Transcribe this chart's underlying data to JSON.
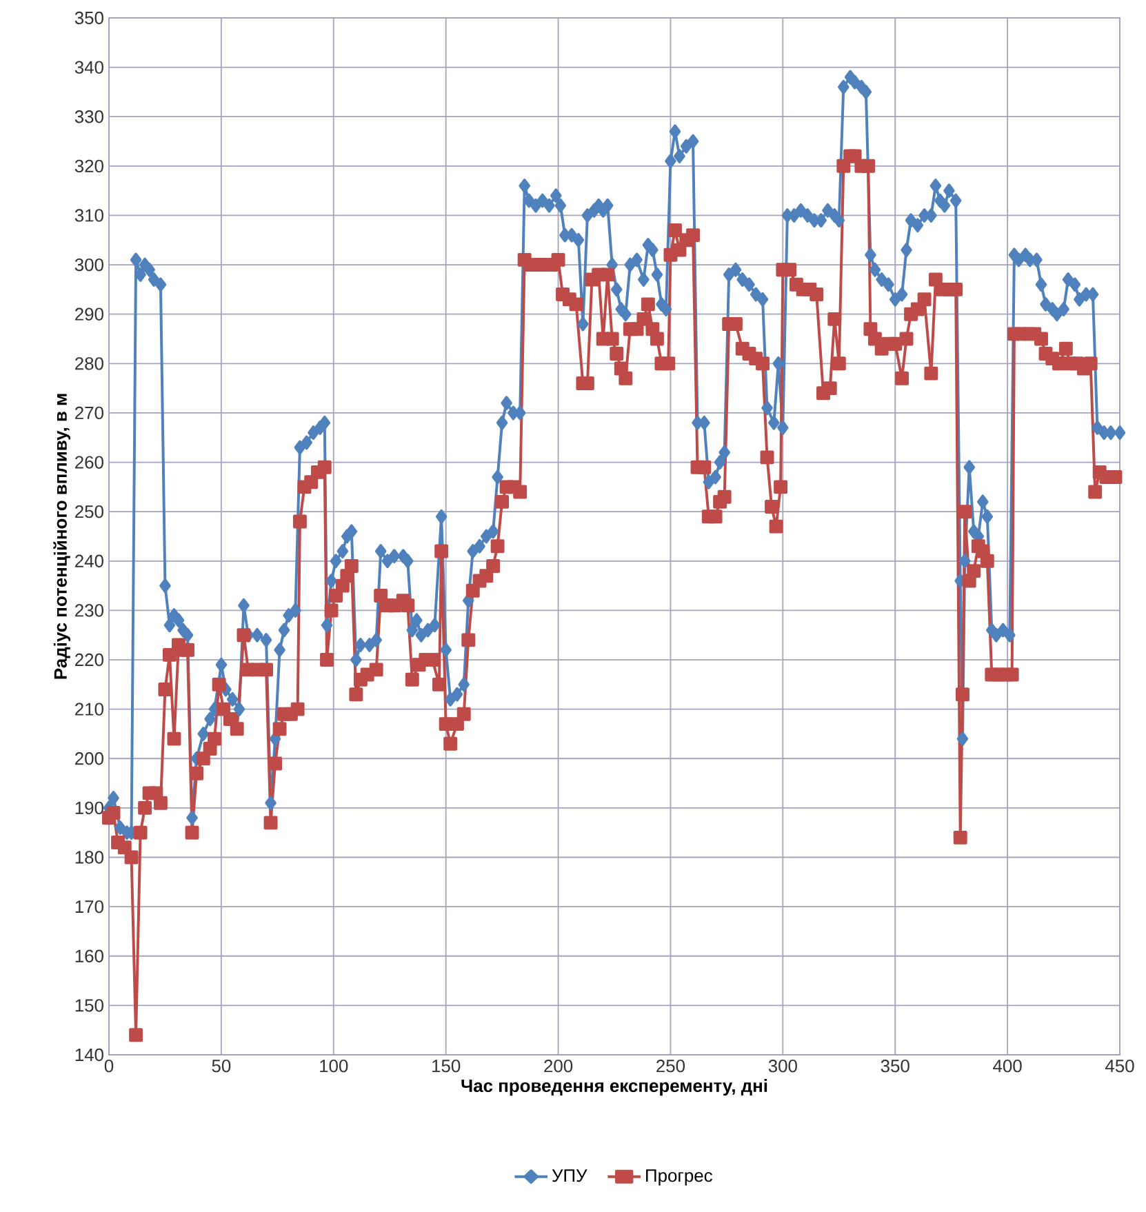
{
  "chart_data": {
    "type": "line",
    "xlabel": "Час проведення  експеременту, дні",
    "ylabel": "Радіус потенційного впливу, в м",
    "xlim": [
      0,
      450
    ],
    "xticks": [
      0,
      50,
      100,
      150,
      200,
      250,
      300,
      350,
      400,
      450
    ],
    "ylim": [
      140,
      350
    ],
    "yticks": [
      140,
      150,
      160,
      170,
      180,
      190,
      200,
      210,
      220,
      230,
      240,
      250,
      260,
      270,
      280,
      290,
      300,
      310,
      320,
      330,
      340,
      350
    ],
    "grid": true,
    "legend": "bottom",
    "line_style": "solid",
    "series": [
      {
        "name": "УПУ",
        "color": "#4f81bd",
        "marker": "diamond",
        "x": [
          0,
          2,
          5,
          8,
          10,
          12,
          14,
          16,
          18,
          20,
          23,
          25,
          27,
          29,
          31,
          33,
          35,
          37,
          39,
          42,
          45,
          47,
          50,
          52,
          55,
          58,
          60,
          62,
          66,
          70,
          72,
          74,
          76,
          78,
          80,
          83,
          85,
          88,
          91,
          94,
          96,
          97,
          99,
          101,
          104,
          106,
          108,
          110,
          112,
          116,
          119,
          121,
          124,
          127,
          131,
          133,
          135,
          137,
          139,
          142,
          145,
          148,
          150,
          152,
          155,
          158,
          160,
          162,
          165,
          168,
          171,
          173,
          175,
          177,
          180,
          183,
          185,
          187,
          190,
          193,
          196,
          199,
          201,
          203,
          206,
          209,
          211,
          213,
          216,
          218,
          220,
          222,
          224,
          226,
          228,
          230,
          232,
          235,
          238,
          240,
          242,
          244,
          246,
          248,
          250,
          252,
          254,
          257,
          260,
          262,
          265,
          267,
          270,
          272,
          274,
          276,
          279,
          282,
          285,
          288,
          291,
          293,
          296,
          298,
          300,
          302,
          305,
          308,
          311,
          314,
          317,
          320,
          323,
          325,
          327,
          330,
          332,
          335,
          337,
          339,
          341,
          344,
          347,
          350,
          353,
          355,
          357,
          360,
          363,
          366,
          368,
          370,
          372,
          374,
          377,
          379,
          380,
          381,
          383,
          385,
          387,
          389,
          391,
          393,
          395,
          398,
          401,
          403,
          405,
          408,
          410,
          413,
          415,
          417,
          420,
          422,
          425,
          427,
          430,
          432,
          435,
          438,
          440,
          443,
          446,
          450
        ],
        "values": [
          190,
          192,
          186,
          185,
          185,
          301,
          298,
          300,
          299,
          297,
          296,
          235,
          227,
          229,
          228,
          226,
          225,
          188,
          200,
          205,
          208,
          210,
          219,
          214,
          212,
          210,
          231,
          225,
          225,
          224,
          191,
          204,
          222,
          226,
          229,
          230,
          263,
          264,
          266,
          267,
          268,
          227,
          236,
          240,
          242,
          245,
          246,
          220,
          223,
          223,
          224,
          242,
          240,
          241,
          241,
          240,
          226,
          228,
          225,
          226,
          227,
          249,
          222,
          212,
          213,
          215,
          232,
          242,
          243,
          245,
          246,
          257,
          268,
          272,
          270,
          270,
          316,
          313,
          312,
          313,
          312,
          314,
          312,
          306,
          306,
          305,
          288,
          310,
          311,
          312,
          311,
          312,
          300,
          295,
          291,
          290,
          300,
          301,
          297,
          304,
          303,
          298,
          292,
          291,
          321,
          327,
          322,
          324,
          325,
          268,
          268,
          256,
          257,
          260,
          262,
          298,
          299,
          297,
          296,
          294,
          293,
          271,
          268,
          280,
          267,
          310,
          310,
          311,
          310,
          309,
          309,
          311,
          310,
          309,
          336,
          338,
          337,
          336,
          335,
          302,
          299,
          297,
          296,
          293,
          294,
          303,
          309,
          308,
          310,
          310,
          316,
          313,
          312,
          315,
          313,
          236,
          204,
          240,
          259,
          246,
          245,
          252,
          249,
          226,
          225,
          226,
          225,
          302,
          301,
          302,
          301,
          301,
          296,
          292,
          291,
          290,
          291,
          297,
          296,
          293,
          294,
          294,
          267,
          266,
          266,
          266
        ]
      },
      {
        "name": "Прогрес",
        "color": "#be4b48",
        "marker": "square",
        "x": [
          0,
          2,
          4,
          7,
          10,
          12,
          14,
          16,
          18,
          21,
          23,
          25,
          27,
          29,
          31,
          33,
          35,
          37,
          39,
          42,
          45,
          47,
          49,
          51,
          54,
          57,
          60,
          62,
          66,
          70,
          72,
          74,
          76,
          78,
          81,
          84,
          85,
          87,
          90,
          93,
          96,
          97,
          99,
          101,
          104,
          106,
          108,
          110,
          112,
          115,
          119,
          121,
          124,
          127,
          131,
          133,
          135,
          138,
          141,
          144,
          147,
          148,
          150,
          152,
          155,
          158,
          160,
          162,
          165,
          168,
          171,
          173,
          175,
          177,
          180,
          183,
          185,
          188,
          191,
          194,
          197,
          200,
          202,
          205,
          208,
          211,
          213,
          215,
          218,
          220,
          222,
          224,
          226,
          228,
          230,
          232,
          235,
          238,
          240,
          242,
          244,
          246,
          249,
          250,
          252,
          254,
          257,
          260,
          262,
          265,
          267,
          270,
          272,
          274,
          276,
          279,
          282,
          285,
          288,
          291,
          293,
          295,
          297,
          299,
          300,
          303,
          306,
          309,
          312,
          315,
          318,
          321,
          323,
          325,
          327,
          330,
          332,
          335,
          338,
          339,
          341,
          344,
          347,
          350,
          353,
          355,
          357,
          360,
          363,
          366,
          368,
          371,
          374,
          377,
          379,
          380,
          381,
          383,
          385,
          387,
          389,
          391,
          393,
          396,
          399,
          402,
          403,
          406,
          409,
          412,
          415,
          417,
          420,
          423,
          426,
          428,
          431,
          434,
          437,
          439,
          441,
          444,
          448
        ],
        "values": [
          188,
          189,
          183,
          182,
          180,
          144,
          185,
          190,
          193,
          193,
          191,
          214,
          221,
          204,
          223,
          222,
          222,
          185,
          197,
          200,
          202,
          204,
          215,
          210,
          208,
          206,
          225,
          218,
          218,
          218,
          187,
          199,
          206,
          209,
          209,
          210,
          248,
          255,
          256,
          258,
          259,
          220,
          230,
          233,
          235,
          237,
          239,
          213,
          216,
          217,
          218,
          233,
          231,
          231,
          232,
          231,
          216,
          219,
          220,
          220,
          215,
          242,
          207,
          203,
          207,
          209,
          224,
          234,
          236,
          237,
          239,
          243,
          252,
          255,
          255,
          254,
          301,
          300,
          300,
          300,
          300,
          301,
          294,
          293,
          292,
          276,
          276,
          297,
          298,
          285,
          298,
          285,
          282,
          279,
          277,
          287,
          287,
          289,
          292,
          287,
          285,
          280,
          280,
          302,
          307,
          303,
          305,
          306,
          259,
          259,
          249,
          249,
          252,
          253,
          288,
          288,
          283,
          282,
          281,
          280,
          261,
          251,
          247,
          255,
          299,
          299,
          296,
          295,
          295,
          294,
          274,
          275,
          289,
          280,
          320,
          322,
          322,
          320,
          320,
          287,
          285,
          283,
          284,
          284,
          277,
          285,
          290,
          291,
          293,
          278,
          297,
          295,
          295,
          295,
          184,
          213,
          250,
          236,
          238,
          243,
          242,
          240,
          217,
          217,
          217,
          217,
          286,
          286,
          286,
          286,
          285,
          282,
          281,
          280,
          283,
          280,
          280,
          279,
          280,
          254,
          258,
          257,
          257
        ]
      }
    ]
  }
}
